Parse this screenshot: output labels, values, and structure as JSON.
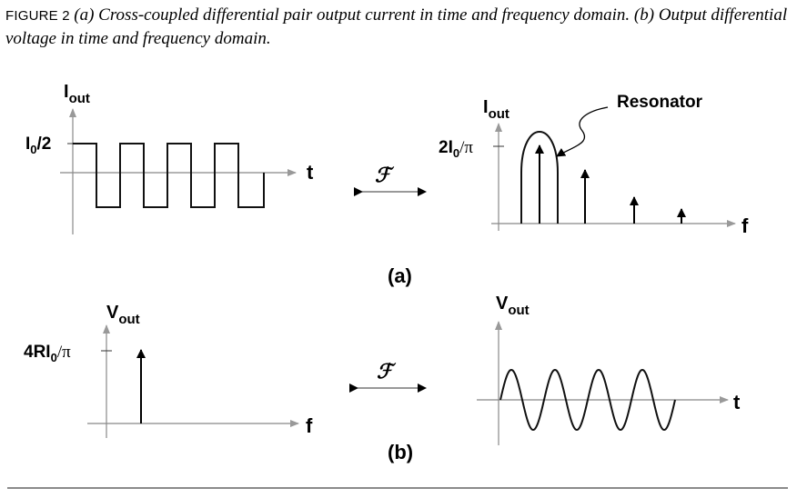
{
  "caption": {
    "lead": "FIGURE 2",
    "text": "(a) Cross-coupled differential pair output current in time and frequency domain. (b) Output differential voltage in time and frequency domain."
  },
  "panel_a": {
    "label": "(a)",
    "time_plot": {
      "y_main": "I",
      "y_sub": "out",
      "level_main": "I",
      "level_sub": "0",
      "level_rest": "/2",
      "x_label": "t"
    },
    "freq_plot": {
      "y_main": "I",
      "y_sub": "out",
      "level_pre": "2I",
      "level_sub": "0",
      "level_rest": "/π",
      "x_label": "f",
      "annotation": "Resonator"
    },
    "transform_symbol": "ℱ"
  },
  "panel_b": {
    "label": "(b)",
    "freq_plot": {
      "y_main": "V",
      "y_sub": "out",
      "level_pre": "4RI",
      "level_sub": "0",
      "level_rest": "/π",
      "x_label": "f"
    },
    "time_plot": {
      "y_main": "V",
      "y_sub": "out",
      "x_label": "t"
    },
    "transform_symbol": "ℱ"
  }
}
